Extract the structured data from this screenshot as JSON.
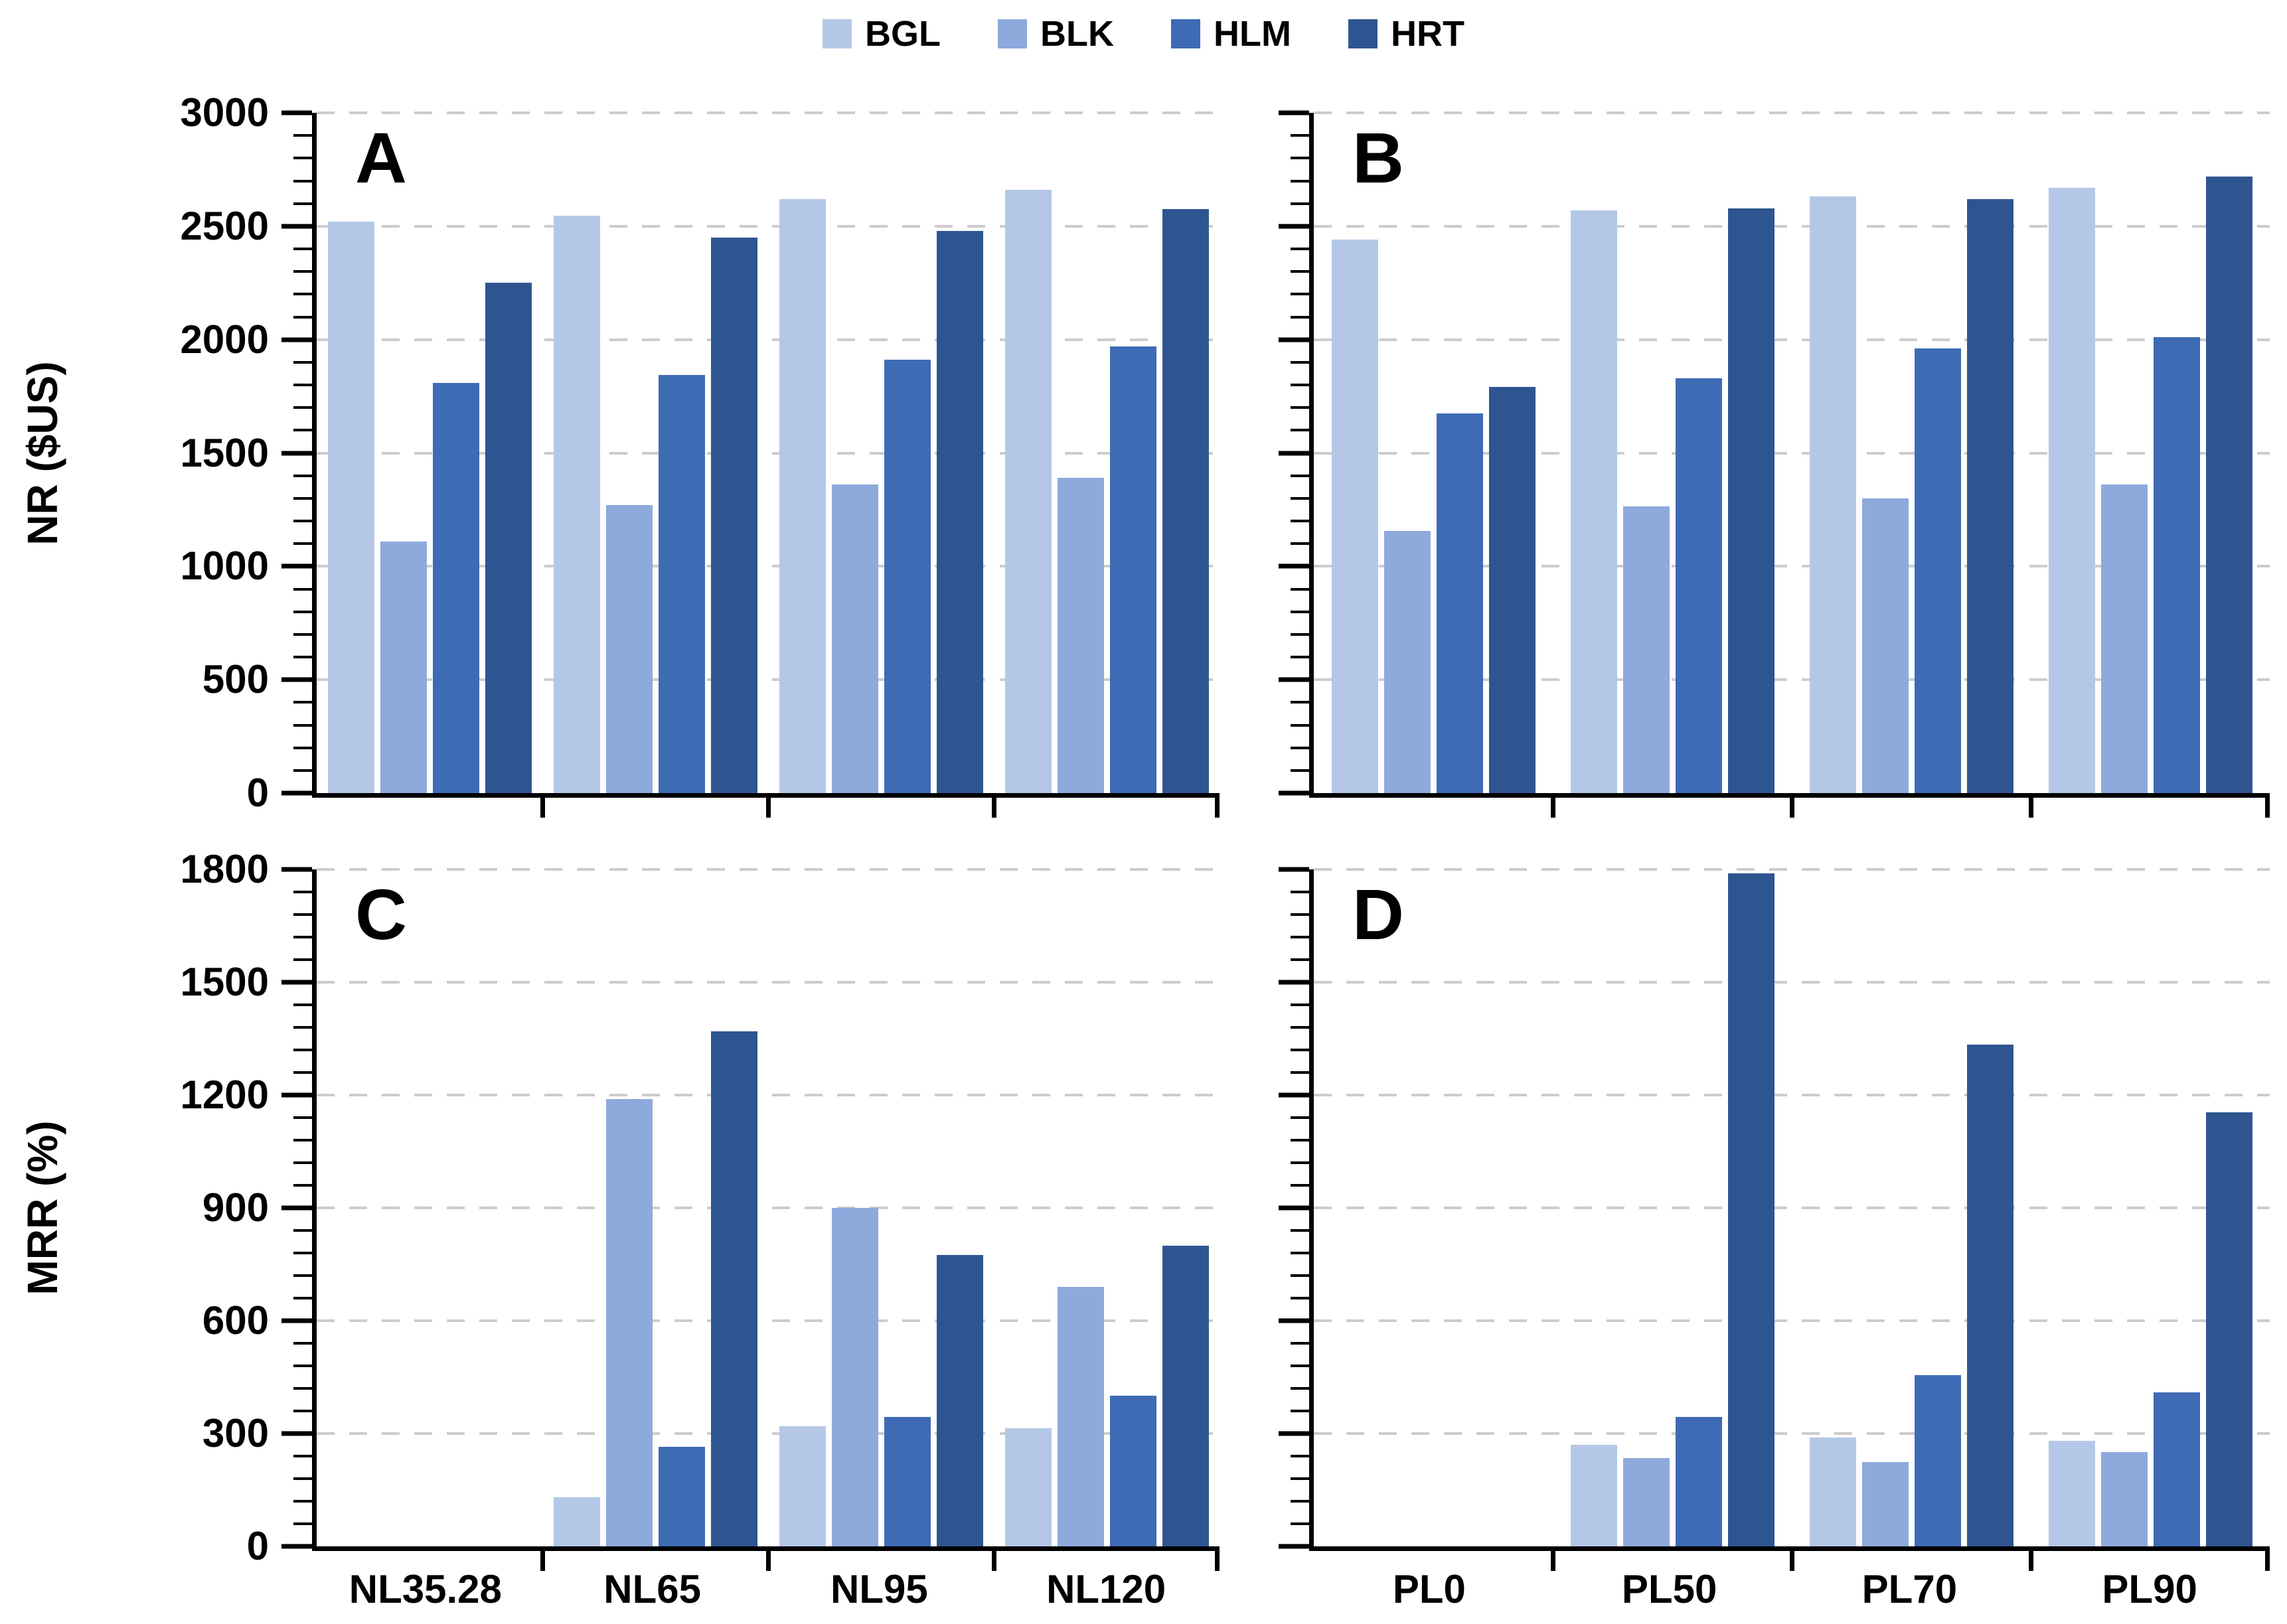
{
  "legend": {
    "items": [
      {
        "label": "BGL",
        "color": "#b4c7e7"
      },
      {
        "label": "BLK",
        "color": "#8ea9dc"
      },
      {
        "label": "HLM",
        "color": "#3e6bb4"
      },
      {
        "label": "HRT",
        "color": "#2f5591"
      }
    ]
  },
  "axes": {
    "grid_color": "#cccccc",
    "axis_color": "#000000",
    "grid_style": "dashed-horizontal"
  },
  "chart_data": [
    {
      "type": "bar",
      "panel": "A",
      "ylabel": "NR ($US)",
      "ylim": [
        0,
        3000
      ],
      "ytick_step": 500,
      "ytick_minor": 100,
      "show_ytick_labels": true,
      "show_xtick_labels": false,
      "legend_position": "top-center",
      "categories": [
        "NL35.28",
        "NL65",
        "NL95",
        "NL120"
      ],
      "series": [
        {
          "name": "BGL",
          "values": [
            2520,
            2545,
            2620,
            2660
          ]
        },
        {
          "name": "BLK",
          "values": [
            1110,
            1270,
            1360,
            1390
          ]
        },
        {
          "name": "HLM",
          "values": [
            1810,
            1845,
            1910,
            1970
          ]
        },
        {
          "name": "HRT",
          "values": [
            2250,
            2450,
            2480,
            2575
          ]
        }
      ]
    },
    {
      "type": "bar",
      "panel": "B",
      "ylabel": "",
      "ylim": [
        0,
        3000
      ],
      "ytick_step": 500,
      "ytick_minor": 100,
      "show_ytick_labels": false,
      "show_xtick_labels": false,
      "categories": [
        "PL0",
        "PL50",
        "PL70",
        "PL90"
      ],
      "series": [
        {
          "name": "BGL",
          "values": [
            2440,
            2570,
            2630,
            2670
          ]
        },
        {
          "name": "BLK",
          "values": [
            1155,
            1265,
            1300,
            1360
          ]
        },
        {
          "name": "HLM",
          "values": [
            1675,
            1830,
            1960,
            2010
          ]
        },
        {
          "name": "HRT",
          "values": [
            1790,
            2580,
            2620,
            2720
          ]
        }
      ]
    },
    {
      "type": "bar",
      "panel": "C",
      "ylabel": "MRR (%)",
      "ylim": [
        0,
        1800
      ],
      "ytick_step": 300,
      "ytick_minor": 60,
      "show_ytick_labels": true,
      "show_xtick_labels": true,
      "categories": [
        "NL35.28",
        "NL65",
        "NL95",
        "NL120"
      ],
      "series": [
        {
          "name": "BGL",
          "values": [
            0,
            130,
            320,
            315
          ]
        },
        {
          "name": "BLK",
          "values": [
            0,
            1190,
            900,
            690
          ]
        },
        {
          "name": "HLM",
          "values": [
            0,
            265,
            345,
            400
          ]
        },
        {
          "name": "HRT",
          "values": [
            0,
            1370,
            775,
            800
          ]
        }
      ]
    },
    {
      "type": "bar",
      "panel": "D",
      "ylabel": "",
      "ylim": [
        0,
        1800
      ],
      "ytick_step": 300,
      "ytick_minor": 60,
      "show_ytick_labels": false,
      "show_xtick_labels": true,
      "categories": [
        "PL0",
        "PL50",
        "PL70",
        "PL90"
      ],
      "series": [
        {
          "name": "BGL",
          "values": [
            0,
            270,
            290,
            280
          ]
        },
        {
          "name": "BLK",
          "values": [
            0,
            235,
            225,
            250
          ]
        },
        {
          "name": "HLM",
          "values": [
            0,
            345,
            455,
            410
          ]
        },
        {
          "name": "HRT",
          "values": [
            0,
            1790,
            1335,
            1155
          ]
        }
      ]
    }
  ]
}
